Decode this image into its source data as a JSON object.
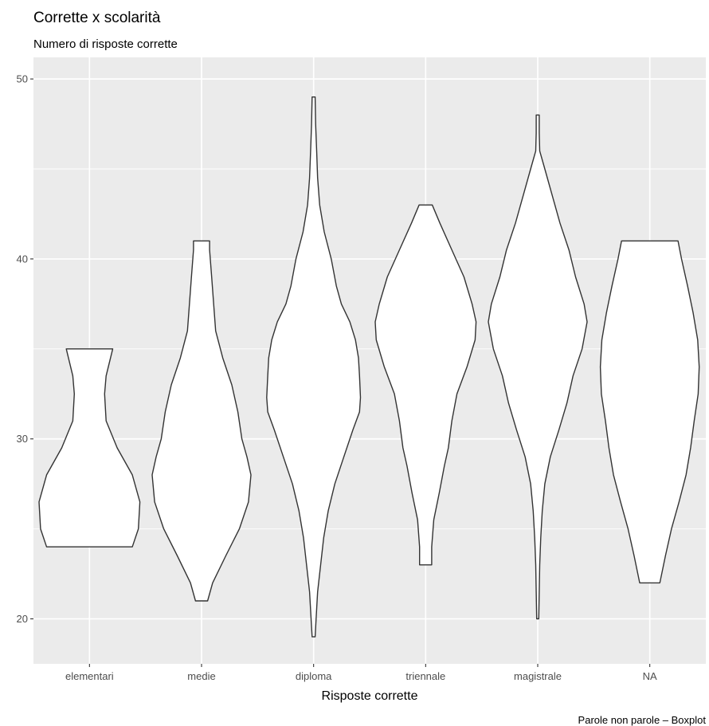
{
  "chart_data": {
    "type": "violin",
    "title": "Corrette x scolarità",
    "subtitle": "Numero di risposte corrette",
    "xlabel": "Risposte corrette",
    "ylabel": "",
    "caption": "Parole non parole – Boxplot",
    "categories": [
      "elementari",
      "medie",
      "diploma",
      "triennale",
      "magistrale",
      "NA"
    ],
    "ylim": [
      17.5,
      51.2
    ],
    "yticks": [
      20,
      30,
      40,
      50
    ],
    "grid": true,
    "legend": "none",
    "colors": {
      "panel": "#ebebeb",
      "grid": "#ffffff",
      "fill": "#ffffff",
      "outline": "#333333"
    },
    "violins": [
      {
        "category": "elementari",
        "min": 24,
        "max": 35,
        "profile": [
          [
            24,
            0.85
          ],
          [
            25,
            0.97
          ],
          [
            26.5,
            1.0
          ],
          [
            28,
            0.85
          ],
          [
            29.5,
            0.55
          ],
          [
            31,
            0.33
          ],
          [
            32.5,
            0.3
          ],
          [
            33.5,
            0.33
          ],
          [
            35,
            0.46
          ]
        ]
      },
      {
        "category": "medie",
        "min": 21,
        "max": 41,
        "profile": [
          [
            21,
            0.12
          ],
          [
            22,
            0.22
          ],
          [
            23.5,
            0.48
          ],
          [
            25,
            0.75
          ],
          [
            26.5,
            0.93
          ],
          [
            28,
            0.98
          ],
          [
            29,
            0.9
          ],
          [
            30,
            0.8
          ],
          [
            31.5,
            0.72
          ],
          [
            33,
            0.6
          ],
          [
            34.5,
            0.42
          ],
          [
            36,
            0.28
          ],
          [
            37.5,
            0.24
          ],
          [
            39,
            0.2
          ],
          [
            40.5,
            0.16
          ],
          [
            41,
            0.16
          ]
        ]
      },
      {
        "category": "diploma",
        "min": 19,
        "max": 49,
        "profile": [
          [
            19,
            0.03
          ],
          [
            20,
            0.05
          ],
          [
            21.5,
            0.08
          ],
          [
            23,
            0.14
          ],
          [
            24.5,
            0.2
          ],
          [
            26,
            0.29
          ],
          [
            27.5,
            0.42
          ],
          [
            29,
            0.6
          ],
          [
            30.5,
            0.78
          ],
          [
            31.5,
            0.91
          ],
          [
            32.3,
            0.93
          ],
          [
            33.5,
            0.91
          ],
          [
            34.5,
            0.89
          ],
          [
            35.5,
            0.83
          ],
          [
            36.5,
            0.72
          ],
          [
            37.5,
            0.55
          ],
          [
            38.5,
            0.45
          ],
          [
            40,
            0.35
          ],
          [
            41.5,
            0.21
          ],
          [
            43,
            0.12
          ],
          [
            44.5,
            0.08
          ],
          [
            46,
            0.06
          ],
          [
            47.5,
            0.04
          ],
          [
            49,
            0.03
          ]
        ]
      },
      {
        "category": "triennale",
        "min": 23,
        "max": 43,
        "profile": [
          [
            23,
            0.12
          ],
          [
            24,
            0.12
          ],
          [
            25.5,
            0.16
          ],
          [
            27,
            0.27
          ],
          [
            28.5,
            0.37
          ],
          [
            29.5,
            0.45
          ],
          [
            31,
            0.52
          ],
          [
            32.5,
            0.62
          ],
          [
            34,
            0.82
          ],
          [
            35.5,
            0.98
          ],
          [
            36.5,
            1.0
          ],
          [
            37.5,
            0.92
          ],
          [
            39,
            0.76
          ],
          [
            40.5,
            0.52
          ],
          [
            42,
            0.28
          ],
          [
            43,
            0.13
          ]
        ]
      },
      {
        "category": "magistrale",
        "min": 20,
        "max": 48,
        "profile": [
          [
            20,
            0.02
          ],
          [
            21.5,
            0.03
          ],
          [
            23,
            0.04
          ],
          [
            24.5,
            0.06
          ],
          [
            26,
            0.09
          ],
          [
            27.5,
            0.14
          ],
          [
            29,
            0.25
          ],
          [
            30.5,
            0.42
          ],
          [
            32,
            0.58
          ],
          [
            33.5,
            0.7
          ],
          [
            35,
            0.88
          ],
          [
            36.5,
            0.98
          ],
          [
            37.5,
            0.92
          ],
          [
            39,
            0.75
          ],
          [
            40.5,
            0.62
          ],
          [
            42,
            0.44
          ],
          [
            43.5,
            0.29
          ],
          [
            45,
            0.14
          ],
          [
            46,
            0.04
          ],
          [
            47,
            0.03
          ],
          [
            48,
            0.03
          ]
        ]
      },
      {
        "category": "NA",
        "min": 22,
        "max": 41,
        "profile": [
          [
            22,
            0.2
          ],
          [
            23.5,
            0.31
          ],
          [
            25,
            0.43
          ],
          [
            26.5,
            0.58
          ],
          [
            28,
            0.72
          ],
          [
            29.5,
            0.81
          ],
          [
            31,
            0.88
          ],
          [
            32.5,
            0.96
          ],
          [
            34,
            0.98
          ],
          [
            35.5,
            0.95
          ],
          [
            37,
            0.86
          ],
          [
            38.5,
            0.75
          ],
          [
            40,
            0.63
          ],
          [
            41,
            0.56
          ]
        ]
      }
    ]
  }
}
